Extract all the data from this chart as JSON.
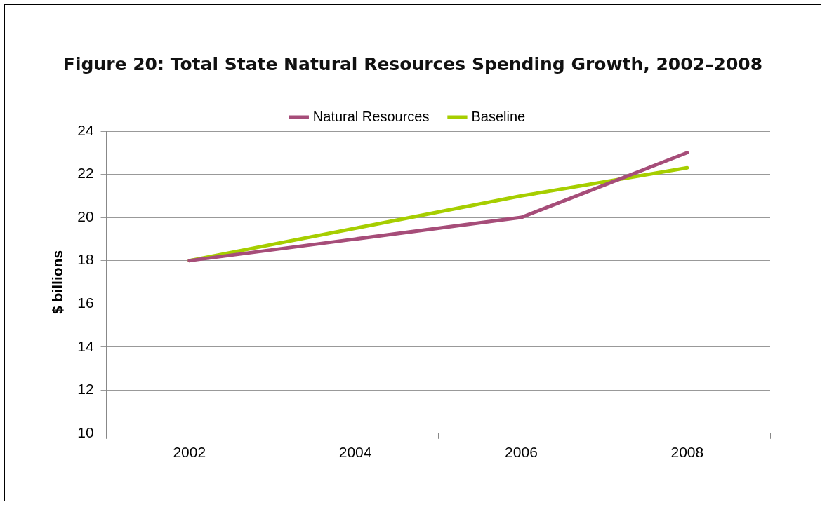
{
  "chart_data": {
    "type": "line",
    "title": "Figure 20: Total State Natural Resources Spending Growth, 2002–2008",
    "ylabel": "$ billions",
    "categories": [
      "2002",
      "2004",
      "2006",
      "2008"
    ],
    "series": [
      {
        "name": "Natural Resources",
        "color": "#a64d79",
        "values": [
          18,
          19,
          20,
          23
        ]
      },
      {
        "name": "Baseline",
        "color": "#a6ce00",
        "values": [
          18,
          19.5,
          21,
          22.3
        ]
      }
    ],
    "ylim": [
      10,
      24
    ],
    "yticks": [
      10,
      12,
      14,
      16,
      18,
      20,
      22,
      24
    ],
    "grid": "y",
    "legend": "top",
    "marker": "none",
    "line_style": "solid"
  }
}
